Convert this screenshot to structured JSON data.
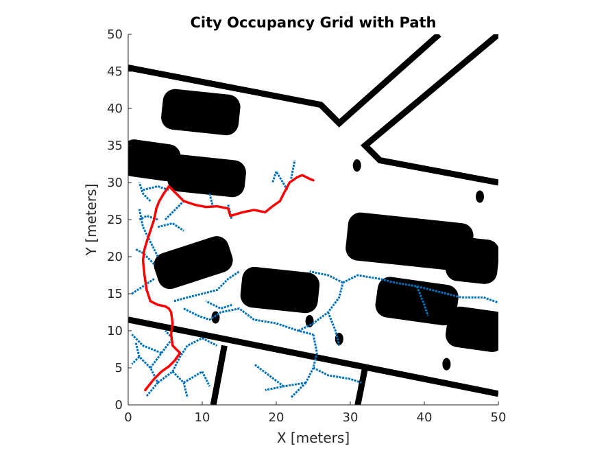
{
  "chart_data": {
    "type": "scatter",
    "title": "City Occupancy Grid with Path",
    "xlabel": "X [meters]",
    "ylabel": "Y [meters]",
    "xlim": [
      0,
      50
    ],
    "ylim": [
      0,
      50
    ],
    "xticks": [
      0,
      10,
      20,
      30,
      40,
      50
    ],
    "yticks": [
      0,
      5,
      10,
      15,
      20,
      25,
      30,
      35,
      40,
      45,
      50
    ],
    "grid": false,
    "legend": "none",
    "colors": {
      "obstacle": "#000000",
      "tree": "#0072BD",
      "path": "#FF0000"
    },
    "obstacles": {
      "walls": [
        {
          "points": [
            [
              0,
              45.5
            ],
            [
              26,
              40.5
            ],
            [
              28.5,
              38
            ],
            [
              42,
              50
            ]
          ]
        },
        {
          "points": [
            [
              50,
              50
            ],
            [
              32,
              35
            ],
            [
              34,
              33
            ],
            [
              50,
              30
            ]
          ]
        },
        {
          "points": [
            [
              0,
              11.5
            ],
            [
              50,
              1.5
            ]
          ]
        },
        {
          "points": [
            [
              11.5,
              0
            ],
            [
              13,
              8
            ]
          ]
        },
        {
          "points": [
            [
              31,
              0
            ],
            [
              32,
              5
            ]
          ]
        }
      ],
      "blocks": [
        {
          "cx": 9.8,
          "cy": 39.5,
          "w": 10.5,
          "h": 5.5,
          "angle": -6
        },
        {
          "cx": 3,
          "cy": 33,
          "w": 8,
          "h": 5,
          "angle": -8
        },
        {
          "cx": 10.6,
          "cy": 30.9,
          "w": 10.5,
          "h": 5,
          "angle": -6
        },
        {
          "cx": 8.8,
          "cy": 19.2,
          "w": 10.5,
          "h": 5,
          "angle": 18
        },
        {
          "cx": 20.5,
          "cy": 15.5,
          "w": 10.5,
          "h": 5.5,
          "angle": -6
        },
        {
          "cx": 39,
          "cy": 14,
          "w": 11,
          "h": 5.5,
          "angle": -8
        },
        {
          "cx": 47,
          "cy": 10.2,
          "w": 8,
          "h": 5.5,
          "angle": -8
        },
        {
          "cx": 38,
          "cy": 22,
          "w": 17,
          "h": 6.5,
          "angle": -6
        },
        {
          "cx": 46.5,
          "cy": 19.5,
          "w": 7,
          "h": 6,
          "angle": -6
        }
      ],
      "blobs": [
        [
          30.9,
          32.3
        ],
        [
          47.5,
          28.1
        ],
        [
          11.8,
          11.8
        ],
        [
          24.5,
          11.3
        ],
        [
          28.5,
          8.9
        ],
        [
          43,
          5.5
        ]
      ]
    },
    "tree": [
      {
        "points": [
          [
            2.5,
            1.2
          ],
          [
            4,
            3
          ],
          [
            3,
            5
          ],
          [
            1.5,
            6.5
          ],
          [
            1,
            8.5
          ]
        ]
      },
      {
        "points": [
          [
            4,
            3
          ],
          [
            6,
            4.5
          ],
          [
            7,
            6.5
          ],
          [
            8,
            8
          ],
          [
            10,
            9
          ],
          [
            12,
            8
          ]
        ]
      },
      {
        "points": [
          [
            6,
            4.5
          ],
          [
            7.5,
            3
          ],
          [
            8,
            1
          ]
        ]
      },
      {
        "points": [
          [
            7.5,
            3
          ],
          [
            10,
            4.5
          ],
          [
            11,
            2.5
          ]
        ]
      },
      {
        "points": [
          [
            3,
            5
          ],
          [
            4.5,
            7
          ],
          [
            6,
            9
          ],
          [
            5,
            10
          ]
        ]
      },
      {
        "points": [
          [
            1.5,
            6.5
          ],
          [
            0.5,
            5.5
          ]
        ]
      },
      {
        "points": [
          [
            4.5,
            7
          ],
          [
            2,
            8
          ],
          [
            0.5,
            9.5
          ]
        ]
      },
      {
        "points": [
          [
            6.2,
            14
          ],
          [
            8,
            14.5
          ],
          [
            10,
            15
          ],
          [
            12,
            15.5
          ],
          [
            13.5,
            17
          ],
          [
            15,
            18
          ]
        ]
      },
      {
        "points": [
          [
            7.5,
            13
          ],
          [
            9.5,
            12
          ],
          [
            11,
            11.5
          ],
          [
            12.5,
            12.5
          ],
          [
            15,
            13
          ],
          [
            17,
            11.5
          ],
          [
            20,
            11
          ],
          [
            23,
            10
          ],
          [
            25,
            9.5
          ]
        ]
      },
      {
        "points": [
          [
            23,
            10
          ],
          [
            25,
            11
          ],
          [
            27,
            12.5
          ],
          [
            28.5,
            14.5
          ],
          [
            29,
            16.5
          ]
        ]
      },
      {
        "points": [
          [
            27,
            12.5
          ],
          [
            28,
            10
          ],
          [
            28.5,
            8
          ]
        ]
      },
      {
        "points": [
          [
            25,
            9.5
          ],
          [
            25.5,
            7
          ],
          [
            25,
            5
          ],
          [
            24,
            3
          ]
        ]
      },
      {
        "points": [
          [
            25,
            5
          ],
          [
            27,
            4
          ],
          [
            30,
            3.5
          ],
          [
            31.5,
            3
          ]
        ]
      },
      {
        "points": [
          [
            24,
            3
          ],
          [
            21,
            2.5
          ],
          [
            18.5,
            2
          ]
        ]
      },
      {
        "points": [
          [
            21,
            2.5
          ],
          [
            19,
            4
          ],
          [
            17,
            5.5
          ]
        ]
      },
      {
        "points": [
          [
            24,
            3
          ],
          [
            22,
            1
          ]
        ]
      },
      {
        "points": [
          [
            14,
            13.5
          ],
          [
            12.5,
            13
          ],
          [
            10.5,
            14
          ]
        ]
      },
      {
        "points": [
          [
            29,
            16.5
          ],
          [
            31,
            17.5
          ],
          [
            34,
            17
          ],
          [
            36,
            16.5
          ],
          [
            39,
            16
          ],
          [
            41,
            15.5
          ],
          [
            43,
            15
          ],
          [
            45,
            14.5
          ],
          [
            48,
            14.5
          ],
          [
            50,
            13.8
          ]
        ]
      },
      {
        "points": [
          [
            39,
            16
          ],
          [
            40,
            13.5
          ],
          [
            40.5,
            12
          ]
        ]
      },
      {
        "points": [
          [
            29,
            16.5
          ],
          [
            27,
            17.5
          ],
          [
            24.5,
            18
          ]
        ]
      },
      {
        "points": [
          [
            4,
            20
          ],
          [
            3,
            22
          ],
          [
            2,
            24
          ],
          [
            1.5,
            26.5
          ]
        ]
      },
      {
        "points": [
          [
            4,
            24
          ],
          [
            6,
            24.5
          ],
          [
            7.5,
            23.5
          ]
        ]
      },
      {
        "points": [
          [
            5,
            25
          ],
          [
            6.5,
            26.5
          ],
          [
            7.5,
            27.5
          ]
        ]
      },
      {
        "points": [
          [
            2,
            29
          ],
          [
            4,
            29.5
          ],
          [
            5.5,
            29
          ]
        ]
      },
      {
        "points": [
          [
            3,
            27.5
          ],
          [
            2,
            28.5
          ],
          [
            1.5,
            30
          ]
        ]
      },
      {
        "points": [
          [
            4,
            25
          ],
          [
            2.5,
            25.5
          ],
          [
            1.5,
            25
          ]
        ]
      },
      {
        "points": [
          [
            3.5,
            17
          ],
          [
            2,
            16
          ],
          [
            0.5,
            15
          ]
        ]
      },
      {
        "points": [
          [
            3.5,
            19
          ],
          [
            2,
            20.5
          ],
          [
            1,
            21
          ]
        ]
      },
      {
        "points": [
          [
            22,
            30.5
          ],
          [
            22.5,
            33
          ]
        ]
      },
      {
        "points": [
          [
            21.5,
            29
          ],
          [
            20,
            31.5
          ],
          [
            19.5,
            30
          ]
        ]
      },
      {
        "points": [
          [
            11,
            28.5
          ],
          [
            11.5,
            26.5
          ]
        ]
      },
      {
        "points": [
          [
            13.5,
            27
          ],
          [
            14,
            25
          ]
        ]
      }
    ],
    "path": {
      "x": [
        2.3,
        3.5,
        4.5,
        5.5,
        6.3,
        7.0,
        6.0,
        5.8,
        6.0,
        5.8,
        5.5,
        5.0,
        4.0,
        3.0,
        2.5,
        2.2,
        2.0,
        2.2,
        2.5,
        3.0,
        3.5,
        3.8,
        4.2,
        4.8,
        5.5,
        6.5,
        7.5,
        9.0,
        10.5,
        12.0,
        13.5,
        13.8,
        15.5,
        17.0,
        18.5,
        19.5,
        20.5,
        21.0,
        21.8,
        22.8,
        23.5,
        24.5,
        25.0
      ],
      "y": [
        2.0,
        3.5,
        4.5,
        5.2,
        6.0,
        7.0,
        8.0,
        9.5,
        11.0,
        12.5,
        13.0,
        13.3,
        13.5,
        14.0,
        15.5,
        17.5,
        19.5,
        21.0,
        22.0,
        23.5,
        25.0,
        26.5,
        27.5,
        28.5,
        29.5,
        28.5,
        27.5,
        27.0,
        26.7,
        26.8,
        26.5,
        25.5,
        26.0,
        26.3,
        26.0,
        26.8,
        27.5,
        28.5,
        30.0,
        30.7,
        31.0,
        30.5,
        30.3
      ]
    }
  }
}
